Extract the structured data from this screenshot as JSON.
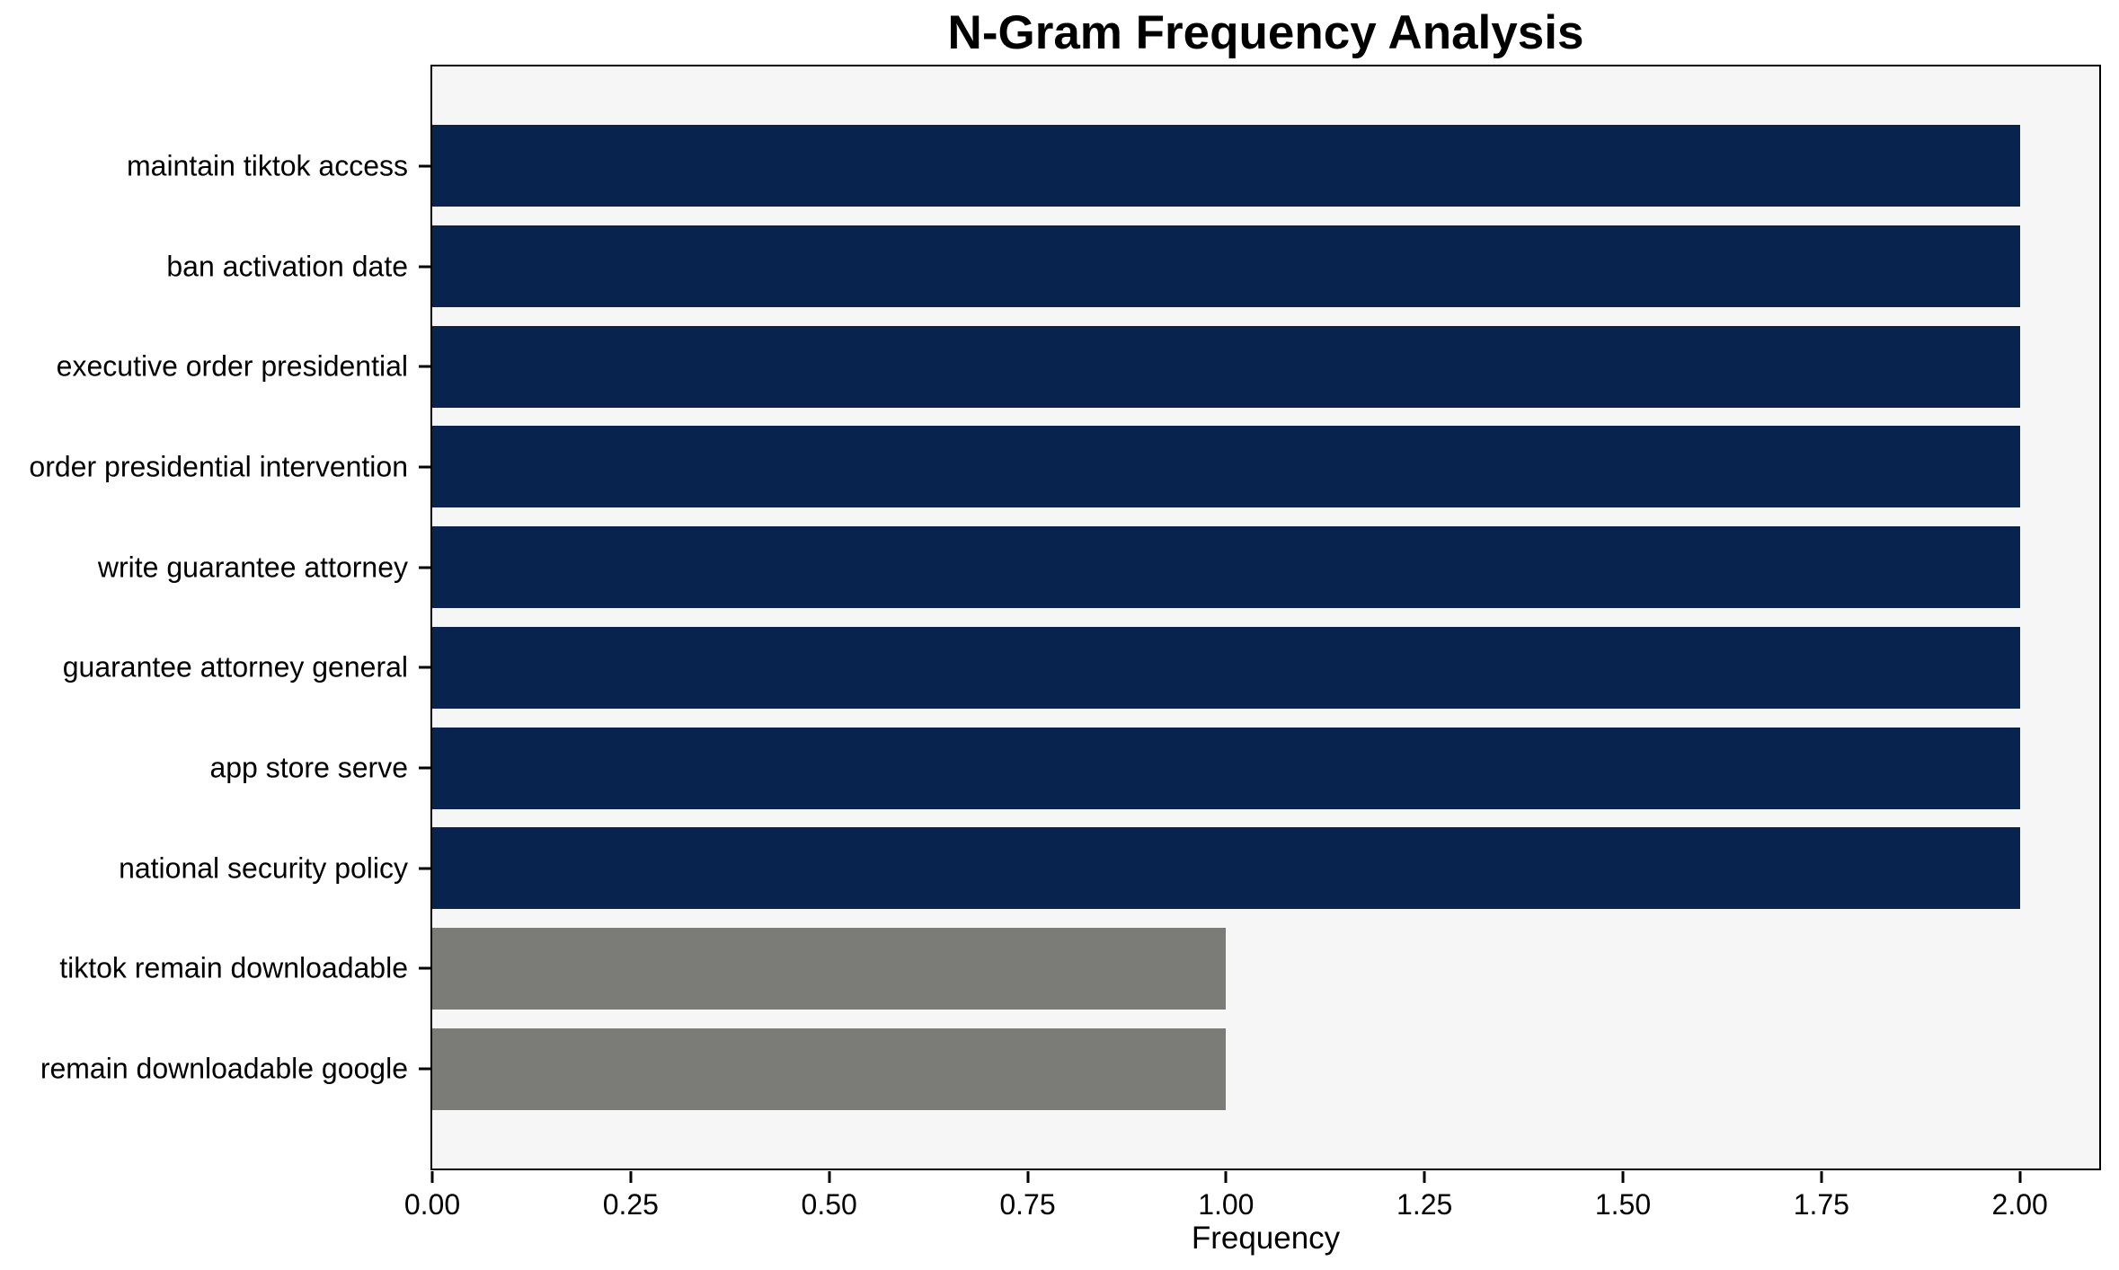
{
  "chart_data": {
    "type": "bar",
    "orientation": "horizontal",
    "title": "N-Gram Frequency Analysis",
    "xlabel": "Frequency",
    "ylabel": "",
    "categories": [
      "maintain tiktok access",
      "ban activation date",
      "executive order presidential",
      "order presidential intervention",
      "write guarantee attorney",
      "guarantee attorney general",
      "app store serve",
      "national security policy",
      "tiktok remain downloadable",
      "remain downloadable google"
    ],
    "values": [
      2,
      2,
      2,
      2,
      2,
      2,
      2,
      2,
      1,
      1
    ],
    "bar_colors": [
      "#08234e",
      "#08234e",
      "#08234e",
      "#08234e",
      "#08234e",
      "#08234e",
      "#08234e",
      "#08234e",
      "#7b7b77",
      "#7b7b77"
    ],
    "xlim": [
      0,
      2.1
    ],
    "xticks": [
      {
        "value": 0.0,
        "label": "0.00"
      },
      {
        "value": 0.25,
        "label": "0.25"
      },
      {
        "value": 0.5,
        "label": "0.50"
      },
      {
        "value": 0.75,
        "label": "0.75"
      },
      {
        "value": 1.0,
        "label": "1.00"
      },
      {
        "value": 1.25,
        "label": "1.25"
      },
      {
        "value": 1.5,
        "label": "1.50"
      },
      {
        "value": 1.75,
        "label": "1.75"
      },
      {
        "value": 2.0,
        "label": "2.00"
      }
    ],
    "grid": false,
    "legend": null,
    "colors": {
      "high_frequency_bar": "#08234e",
      "low_frequency_bar": "#7b7b77",
      "plot_background": "#f6f6f6",
      "figure_background": "#ffffff",
      "axis": "#000000",
      "text": "#000000"
    }
  }
}
